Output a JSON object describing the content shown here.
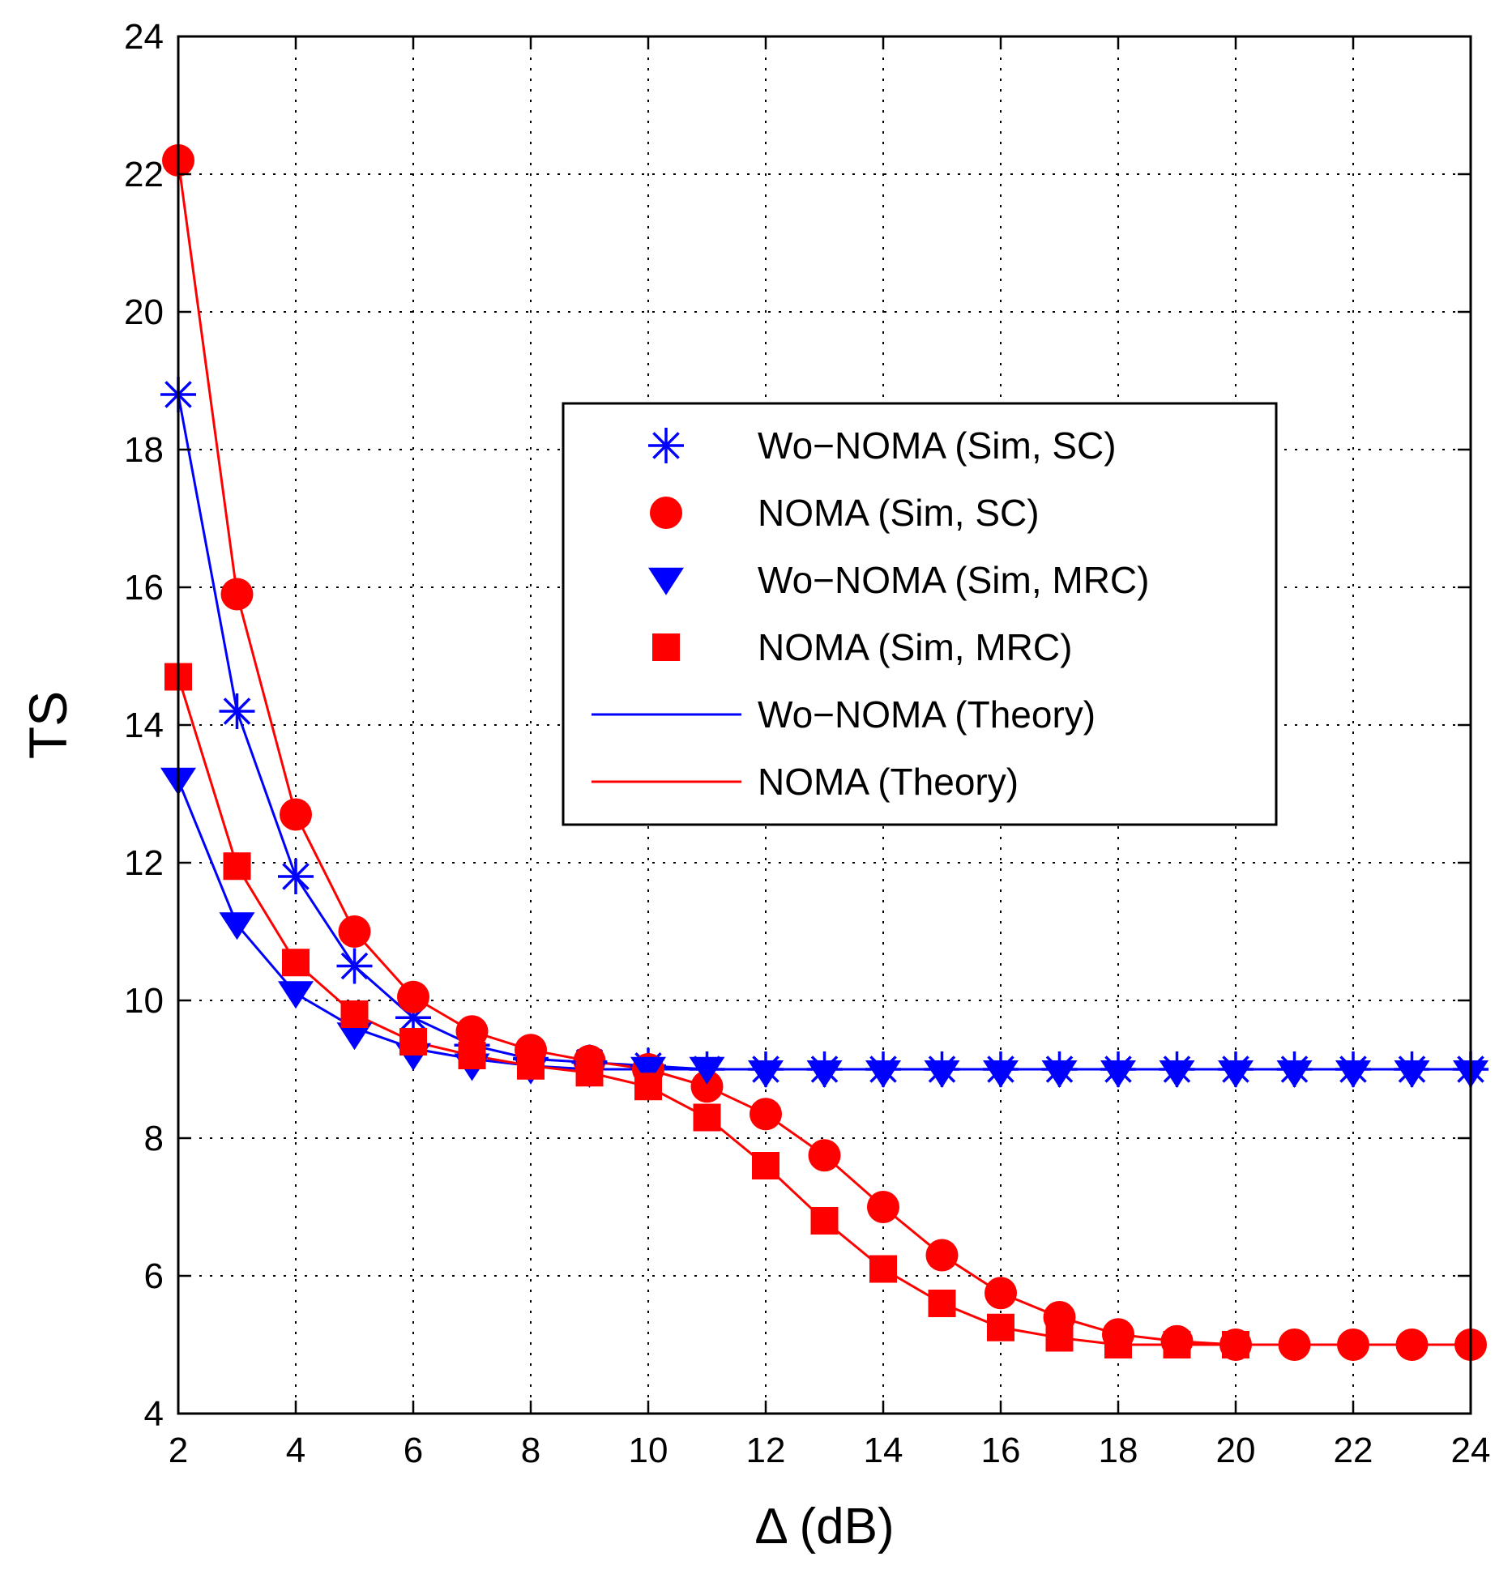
{
  "chart_data": {
    "type": "line",
    "title": "",
    "xlabel": "Δ (dB)",
    "ylabel": "TS",
    "xlim": [
      2,
      24
    ],
    "ylim": [
      4,
      24
    ],
    "xticks": [
      2,
      4,
      6,
      8,
      10,
      12,
      14,
      16,
      18,
      20,
      22,
      24
    ],
    "yticks": [
      4,
      6,
      8,
      10,
      12,
      14,
      16,
      18,
      20,
      22,
      24
    ],
    "grid": true,
    "legend_position": "center-right",
    "x": [
      2,
      3,
      4,
      5,
      6,
      7,
      8,
      9,
      10,
      11,
      12,
      13,
      14,
      15,
      16,
      17,
      18,
      19,
      20,
      21,
      22,
      23,
      24
    ],
    "series": [
      {
        "name": "Wo−NOMA (Sim, SC)",
        "color": "#0000ff",
        "marker": "asterisk",
        "line": "none",
        "x": [
          2,
          3,
          4,
          5,
          6,
          7,
          8,
          9,
          10,
          11,
          12,
          13,
          14,
          15,
          16,
          17,
          18,
          19,
          20,
          21,
          22,
          23,
          24
        ],
        "values": [
          18.8,
          14.2,
          11.8,
          10.5,
          9.75,
          9.35,
          9.15,
          9.1,
          9.05,
          9.0,
          9.0,
          9.0,
          9.0,
          9.0,
          9.0,
          9.0,
          9.0,
          9.0,
          9.0,
          9.0,
          9.0,
          9.0,
          9.0
        ]
      },
      {
        "name": "NOMA (Sim, SC)",
        "color": "#ff0000",
        "marker": "circle",
        "line": "none",
        "x": [
          2,
          3,
          4,
          5,
          6,
          7,
          8,
          9,
          10,
          11,
          12,
          13,
          14,
          15,
          16,
          17,
          18,
          19,
          20,
          21,
          22,
          23,
          24
        ],
        "values": [
          22.2,
          15.9,
          12.7,
          11.0,
          10.05,
          9.55,
          9.28,
          9.12,
          9.0,
          8.75,
          8.35,
          7.75,
          7.0,
          6.3,
          5.75,
          5.4,
          5.15,
          5.05,
          5.0,
          5.0,
          5.0,
          5.0,
          5.0
        ]
      },
      {
        "name": "Wo−NOMA (Sim, MRC)",
        "color": "#0000ff",
        "marker": "triangle-down",
        "line": "none",
        "x": [
          2,
          3,
          4,
          5,
          6,
          7,
          8,
          9,
          10,
          11,
          12,
          13,
          14,
          15,
          16,
          17,
          18,
          19,
          20,
          21,
          22,
          23,
          24
        ],
        "values": [
          13.2,
          11.1,
          10.1,
          9.5,
          9.2,
          9.05,
          9.0,
          8.95,
          9.0,
          9.0,
          8.95,
          8.95,
          8.95,
          8.95,
          8.95,
          8.95,
          8.95,
          8.95,
          8.95,
          8.95,
          8.95,
          8.95,
          8.95
        ]
      },
      {
        "name": "NOMA (Sim, MRC)",
        "color": "#ff0000",
        "marker": "square",
        "line": "none",
        "x": [
          2,
          3,
          4,
          5,
          6,
          7,
          8,
          9,
          10,
          11,
          12,
          13,
          14,
          15,
          16,
          17,
          18,
          19,
          20
        ],
        "values": [
          14.7,
          11.95,
          10.55,
          9.8,
          9.4,
          9.2,
          9.05,
          8.95,
          8.75,
          8.3,
          7.6,
          6.8,
          6.1,
          5.6,
          5.25,
          5.1,
          5.0,
          5.0,
          5.0
        ]
      },
      {
        "name": "Wo−NOMA (Theory)",
        "color": "#0000ff",
        "marker": "none",
        "line": "solid",
        "x": [
          2,
          3,
          4,
          5,
          6,
          7,
          8,
          9,
          10,
          11,
          12,
          13,
          14,
          15,
          16,
          17,
          18,
          19,
          20,
          21,
          22,
          23,
          24
        ],
        "values": [
          18.8,
          14.2,
          11.8,
          10.5,
          9.75,
          9.35,
          9.15,
          9.1,
          9.05,
          9.0,
          9.0,
          9.0,
          9.0,
          9.0,
          9.0,
          9.0,
          9.0,
          9.0,
          9.0,
          9.0,
          9.0,
          9.0,
          9.0
        ],
        "x2": [
          2,
          3,
          4,
          5,
          6,
          7,
          8,
          9,
          10,
          11,
          12
        ],
        "values2": [
          13.2,
          11.1,
          10.1,
          9.6,
          9.3,
          9.15,
          9.05,
          9.0,
          9.0,
          9.0,
          9.0
        ]
      },
      {
        "name": "NOMA (Theory)",
        "color": "#ff0000",
        "marker": "none",
        "line": "solid",
        "x": [
          2,
          3,
          4,
          5,
          6,
          7,
          8,
          9,
          10,
          11,
          12,
          13,
          14,
          15,
          16,
          17,
          18,
          19,
          20,
          21,
          22,
          23,
          24
        ],
        "values": [
          22.2,
          15.9,
          12.7,
          11.0,
          10.05,
          9.55,
          9.28,
          9.12,
          9.0,
          8.75,
          8.35,
          7.75,
          7.0,
          6.3,
          5.75,
          5.4,
          5.15,
          5.05,
          5.0,
          5.0,
          5.0,
          5.0,
          5.0
        ],
        "x2": [
          2,
          3,
          4,
          5,
          6,
          7,
          8,
          9,
          10,
          11,
          12,
          13,
          14,
          15,
          16,
          17,
          18,
          19,
          20
        ],
        "values2": [
          14.7,
          11.95,
          10.55,
          9.8,
          9.4,
          9.2,
          9.05,
          8.95,
          8.75,
          8.3,
          7.6,
          6.8,
          6.1,
          5.6,
          5.25,
          5.1,
          5.0,
          5.0,
          5.0
        ]
      }
    ]
  }
}
